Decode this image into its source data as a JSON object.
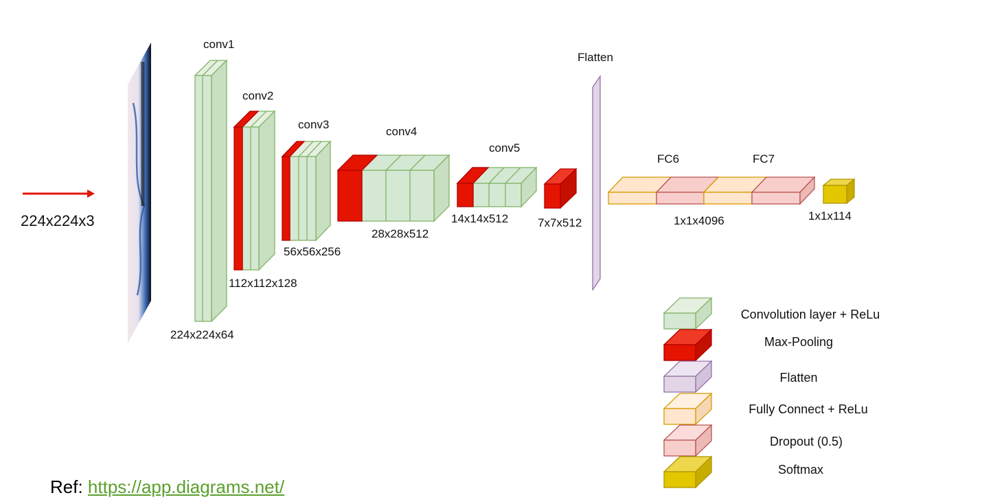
{
  "input": {
    "label": "224x224x3"
  },
  "layers": {
    "conv1": {
      "name": "conv1",
      "dims": "224x224x64"
    },
    "conv2": {
      "name": "conv2",
      "dims": "112x112x128"
    },
    "conv3": {
      "name": "conv3",
      "dims": "56x56x256"
    },
    "conv4": {
      "name": "conv4",
      "dims": "28x28x512"
    },
    "conv5": {
      "name": "conv5",
      "dims": "14x14x512"
    },
    "pool5": {
      "dims": "7x7x512"
    },
    "flatten": {
      "name": "Flatten"
    },
    "fc6": {
      "name": "FC6"
    },
    "fc7": {
      "name": "FC7"
    },
    "fc_dims": "1x1x4096",
    "softmax": {
      "dims": "1x1x114"
    }
  },
  "legend": [
    {
      "label": "Convolution layer + ReLu",
      "icon": "conv-legend-icon"
    },
    {
      "label": "Max-Pooling",
      "icon": "maxpool-legend-icon"
    },
    {
      "label": "Flatten",
      "icon": "flatten-legend-icon"
    },
    {
      "label": "Fully Connect + ReLu",
      "icon": "fc-legend-icon"
    },
    {
      "label": "Dropout (0.5)",
      "icon": "dropout-legend-icon"
    },
    {
      "label": "Softmax",
      "icon": "softmax-legend-icon"
    }
  ],
  "ref": {
    "prefix": "Ref:",
    "link": "https://app.diagrams.net/"
  },
  "colors": {
    "conv_fill": "#d5e8d4",
    "conv_stroke": "#82b366",
    "pool_fill": "#e51400",
    "pool_stroke": "#b20000",
    "flatten_fill": "#e1d5e7",
    "flatten_stroke": "#9673a6",
    "fc_fill": "#ffe6cc",
    "fc_stroke": "#d79b00",
    "dropout_fill": "#f8cecc",
    "dropout_stroke": "#b85450",
    "softmax_fill": "#e3c800",
    "softmax_stroke": "#b09500",
    "arrow": "#e51400",
    "link": "#5aa02c"
  }
}
